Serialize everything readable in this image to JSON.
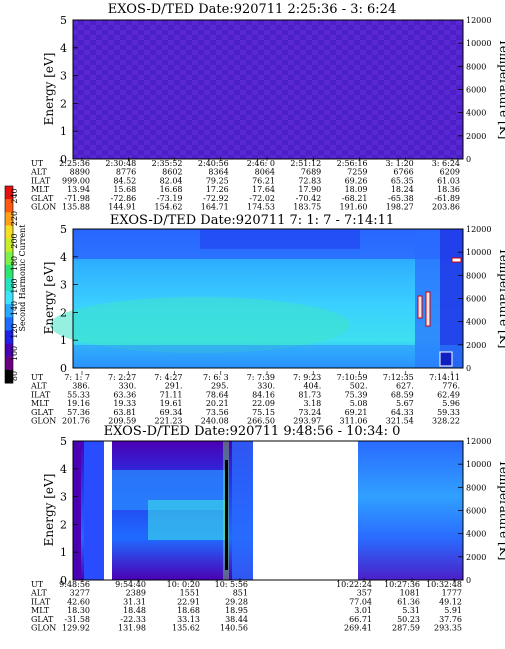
{
  "chart_data": {
    "type": "heatmap",
    "colorbar": {
      "label": "Second Harmonic Current",
      "ticks": [
        "80",
        "100",
        "120",
        "140",
        "160",
        "180",
        "200",
        "220",
        "240"
      ],
      "colors": [
        "#000000",
        "#6a0080",
        "#4b00b4",
        "#1f22e6",
        "#1f6bff",
        "#27a9ff",
        "#3ee4ff",
        "#26e3c0",
        "#2ee673",
        "#7ef24a",
        "#c8ee28",
        "#f6de23",
        "#ffa217",
        "#ff5a12",
        "#e5110f"
      ]
    },
    "panels": [
      {
        "title": "EXOS-D/TED   Date:920711   2:25:36 - 3: 6:24",
        "ylabel": "Energy [eV]",
        "y2label": "Temperature [K]",
        "ylim": [
          0,
          5
        ],
        "y2lim": [
          0,
          12000
        ],
        "yticks": [
          "0",
          "1",
          "2",
          "3",
          "4",
          "5"
        ],
        "y2ticks": [
          "0",
          "2000",
          "4000",
          "6000",
          "8000",
          "10000",
          "12000"
        ],
        "ephemeris": {
          "labels": [
            "UT",
            "ALT",
            "ILAT",
            "MLT",
            "GLAT",
            "GLON"
          ],
          "columns": [
            [
              "2:25:36",
              "8890",
              "999.00",
              "13.94",
              "-71.98",
              "135.88"
            ],
            [
              "2:30:48",
              "8776",
              "84.52",
              "15.68",
              "-72.86",
              "144.91"
            ],
            [
              "2:35:52",
              "8602",
              "82.04",
              "16.68",
              "-73.19",
              "154.62"
            ],
            [
              "2:40:56",
              "8364",
              "79.25",
              "17.26",
              "-72.92",
              "164.71"
            ],
            [
              "2:46: 0",
              "8064",
              "76.21",
              "17.64",
              "-72.02",
              "174.53"
            ],
            [
              "2:51:12",
              "7689",
              "72.83",
              "17.90",
              "-70.42",
              "183.75"
            ],
            [
              "2:56:16",
              "7259",
              "69.26",
              "18.09",
              "-68.21",
              "191.60"
            ],
            [
              "3: 1:20",
              "6766",
              "65.35",
              "18.24",
              "-65.38",
              "198.27"
            ],
            [
              "3: 6:24",
              "6209",
              "61.03",
              "18.36",
              "-61.89",
              "203.86"
            ]
          ]
        },
        "dominant_level": "low (~110)",
        "gaps": []
      },
      {
        "title": "EXOS-D/TED   Date:920711   7: 1: 7 - 7:14:11",
        "ylabel": "Energy [eV]",
        "y2label": "Temperature [K]",
        "ylim": [
          0,
          5
        ],
        "y2lim": [
          0,
          12000
        ],
        "yticks": [
          "0",
          "1",
          "2",
          "3",
          "4",
          "5"
        ],
        "y2ticks": [
          "0",
          "2000",
          "4000",
          "6000",
          "8000",
          "10000",
          "12000"
        ],
        "ephemeris": {
          "labels": [
            "UT",
            "ALT",
            "ILAT",
            "MLT",
            "GLAT",
            "GLON"
          ],
          "columns": [
            [
              "7: 1: 7",
              "386.",
              "55.33",
              "19.16",
              "57.36",
              "201.76"
            ],
            [
              "7: 2:27",
              "330.",
              "63.36",
              "19.33",
              "63.81",
              "209.59"
            ],
            [
              "7: 4:27",
              "291.",
              "71.11",
              "19.61",
              "69.34",
              "221.23"
            ],
            [
              "7: 6: 3",
              "295.",
              "78.64",
              "20.21",
              "73.56",
              "240.08"
            ],
            [
              "7: 7:39",
              "330.",
              "84.16",
              "22.09",
              "75.15",
              "266.50"
            ],
            [
              "7: 9:23",
              "404.",
              "81.73",
              "3.18",
              "73.24",
              "293.97"
            ],
            [
              "7:10:59",
              "502.",
              "75.39",
              "5.08",
              "69.21",
              "311.06"
            ],
            [
              "7:12:35",
              "627.",
              "68.59",
              "5.67",
              "64.33",
              "321.54"
            ],
            [
              "7:14:11",
              "776.",
              "62.49",
              "5.96",
              "59.33",
              "328.22"
            ]
          ]
        },
        "dominant_level": "medium (~140-160)",
        "gaps": []
      },
      {
        "title": "EXOS-D/TED   Date:920711   9:48:56 - 10:34: 0",
        "ylabel": "Energy [eV]",
        "y2label": "Temperature [K]",
        "ylim": [
          0,
          5
        ],
        "y2lim": [
          0,
          12000
        ],
        "yticks": [
          "0",
          "1",
          "2",
          "3",
          "4",
          "5"
        ],
        "y2ticks": [
          "0",
          "2000",
          "4000",
          "6000",
          "8000",
          "10000",
          "12000"
        ],
        "ephemeris": {
          "labels": [
            "UT",
            "ALT",
            "ILAT",
            "MLT",
            "GLAT",
            "GLON"
          ],
          "columns": [
            [
              "9:48:56",
              "3277",
              "42.60",
              "18.30",
              "-31.58",
              "129.92"
            ],
            [
              "9:54:40",
              "2389",
              "31.31",
              "18.48",
              "-22.33",
              "131.98"
            ],
            [
              "10: 0:20",
              "1551",
              "22.91",
              "18.68",
              "33.13",
              "135.62"
            ],
            [
              "10: 5:56",
              "851",
              "29.28",
              "18.95",
              "38.44",
              "140.56"
            ],
            [
              "10:22:24",
              "357",
              "77.04",
              "3.01",
              "66.71",
              "269.41"
            ],
            [
              "10:27:36",
              "1081",
              "61.36",
              "5.31",
              "50.23",
              "287.59"
            ],
            [
              "10:32:48",
              "1777",
              "49.12",
              "5.91",
              "37.76",
              "293.35"
            ]
          ]
        },
        "dominant_level": "mixed (~100-170)",
        "gaps": [
          [
            "10:11:00",
            "10:22:00"
          ]
        ]
      }
    ]
  }
}
